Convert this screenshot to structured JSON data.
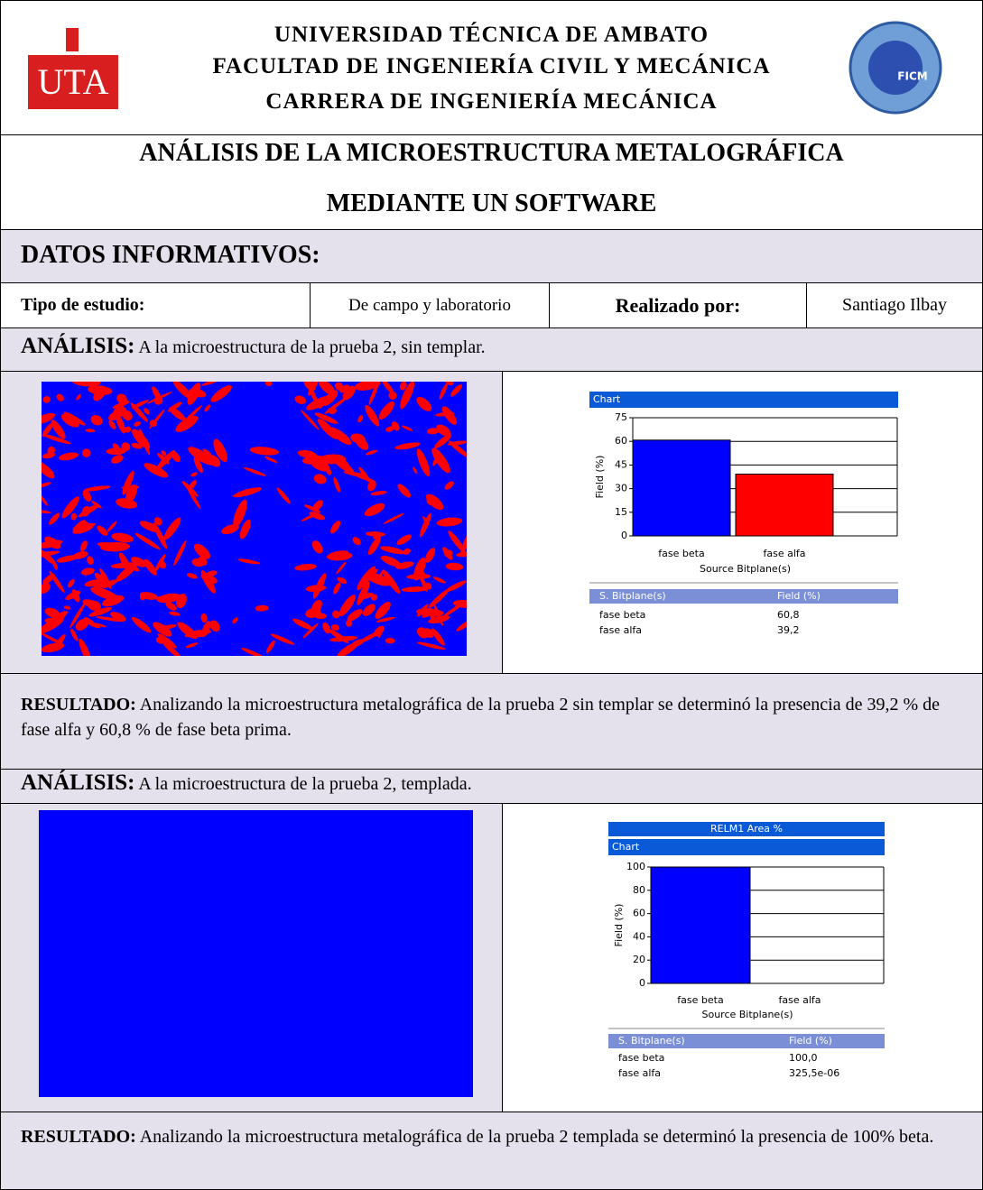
{
  "header": {
    "lines": [
      "UNIVERSIDAD TÉCNICA DE AMBATO",
      "FACULTAD DE INGENIERÍA CIVIL Y MECÁNICA",
      "CARRERA DE INGENIERÍA MECÁNICA"
    ],
    "logo_left": "UTA",
    "logo_right": "FICM"
  },
  "title": {
    "lines": [
      "ANÁLISIS DE LA MICROESTRUCTURA METALOGRÁFICA",
      "MEDIANTE UN SOFTWARE"
    ]
  },
  "section": "DATOS INFORMATIVOS:",
  "info": {
    "cells": [
      "Tipo de estudio:",
      "De campo y laboratorio",
      "Realizado por:",
      "Santiago Ilbay"
    ]
  },
  "analyses": [
    {
      "label": "ANÁLISIS:",
      "text": "A la microestructura de la prueba 2, sin templar.",
      "result_label": "RESULTADO:",
      "result_text": "Analizando la microestructura metalográfica de la prueba 2 sin templar se determinó la presencia de 39,2 % de fase alfa y 60,8 % de fase beta prima."
    },
    {
      "label": "ANÁLISIS:",
      "text": "A la microestructura de la prueba 2, templada.",
      "result_label": "RESULTADO:",
      "result_text": "Analizando la microestructura metalográfica de la prueba 2 templada se determinó la presencia de 100% beta."
    }
  ],
  "chart_data": [
    {
      "type": "bar",
      "title": "Chart",
      "xlabel": "Source Bitplane(s)",
      "ylabel": "Field (%)",
      "categories": [
        "fase beta",
        "fase alfa"
      ],
      "values": [
        60.8,
        39.2
      ],
      "value_labels": [
        "60,8",
        "39,2"
      ],
      "colors": [
        "#0000ff",
        "#ff0000"
      ],
      "ylim": [
        0,
        75
      ],
      "yticks": [
        0,
        15,
        30,
        45,
        60,
        75
      ],
      "grid": true,
      "table_headers": [
        "S. Bitplane(s)",
        "Field (%)"
      ]
    },
    {
      "type": "bar",
      "panel_title": "RELM1 Area %",
      "title": "Chart",
      "xlabel": "Source Bitplane(s)",
      "ylabel": "Field (%)",
      "categories": [
        "fase beta",
        "fase alfa"
      ],
      "values": [
        100,
        0.0003255
      ],
      "value_labels": [
        "100,0",
        "325,5e-06"
      ],
      "colors": [
        "#0000ff",
        "#ff0000"
      ],
      "ylim": [
        0,
        100
      ],
      "yticks": [
        0,
        20,
        40,
        60,
        80,
        100
      ],
      "grid": true,
      "table_headers": [
        "S. Bitplane(s)",
        "Field (%)"
      ]
    }
  ]
}
